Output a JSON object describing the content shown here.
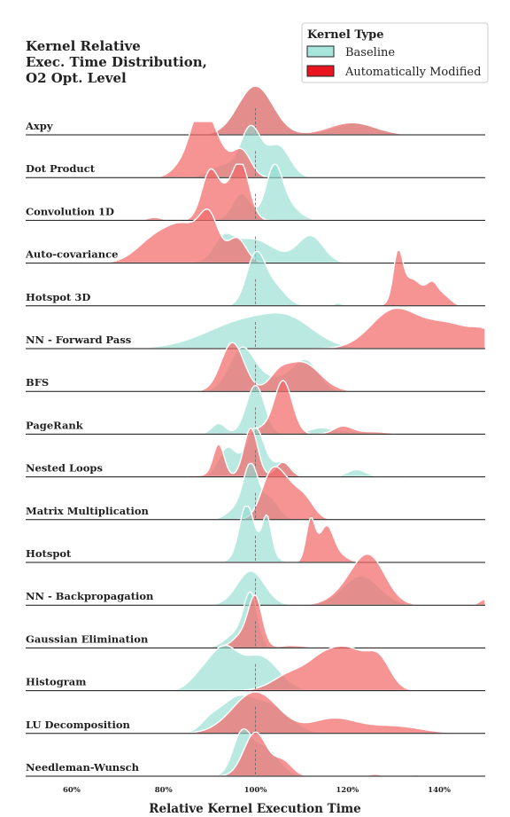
{
  "chart_data": {
    "type": "ridgeline",
    "title": [
      "Kernel Relative",
      "Exec. Time Distribution,",
      "O2 Opt. Level"
    ],
    "xlabel": "Relative Kernel Execution Time",
    "xlim": [
      50,
      150
    ],
    "xticks": [
      60,
      80,
      100,
      120,
      140
    ],
    "xtick_labels": [
      "60%",
      "80%",
      "100%",
      "120%",
      "140%"
    ],
    "reference_line": 100,
    "legend": {
      "title": "Kernel Type",
      "placement": "top-right",
      "entries": [
        {
          "label": "Baseline",
          "color": "#a8e6dc",
          "edge": "#222222"
        },
        {
          "label": "Automatically Modified",
          "color": "#e8141e",
          "edge": "#222222"
        }
      ]
    },
    "colors": {
      "baseline": "#8fdcd0",
      "modified": "#f26b6b",
      "outline": "#ffffff"
    },
    "series_names": [
      "Baseline",
      "Automatically Modified"
    ],
    "kernels": [
      {
        "name": "Axpy",
        "baseline": [
          [
            100,
            4.0,
            1.0
          ],
          [
            122,
            5.0,
            0.25
          ]
        ],
        "modified": [
          [
            100,
            3.8,
            1.0
          ],
          [
            121,
            5.0,
            0.25
          ]
        ]
      },
      {
        "name": "Dot Product",
        "baseline": [
          [
            99,
            2.2,
            1.0
          ],
          [
            105,
            2.5,
            0.65
          ],
          [
            93,
            3.0,
            0.25
          ]
        ],
        "modified": [
          [
            88,
            2.0,
            0.95
          ],
          [
            91,
            2.5,
            0.75
          ],
          [
            97,
            2.0,
            0.55
          ],
          [
            85,
            2.5,
            0.35
          ]
        ]
      },
      {
        "name": "Convolution 1D",
        "baseline": [
          [
            104,
            1.8,
            1.0
          ],
          [
            97,
            2.0,
            0.55
          ],
          [
            107,
            2.5,
            0.3
          ]
        ],
        "modified": [
          [
            90,
            1.8,
            0.9
          ],
          [
            97,
            1.8,
            0.95
          ],
          [
            94,
            2.5,
            0.5
          ],
          [
            78,
            1.5,
            0.06
          ]
        ]
      },
      {
        "name": "Auto-covariance",
        "baseline": [
          [
            112,
            2.8,
            0.55
          ],
          [
            99,
            5.0,
            0.5
          ],
          [
            93,
            2.0,
            0.35
          ]
        ],
        "modified": [
          [
            90,
            2.0,
            0.75
          ],
          [
            85,
            4.0,
            0.7
          ],
          [
            78,
            4.0,
            0.45
          ],
          [
            96,
            2.0,
            0.5
          ]
        ]
      },
      {
        "name": "Hotspot 3D",
        "baseline": [
          [
            100,
            2.0,
            1.0
          ],
          [
            104,
            2.5,
            0.4
          ],
          [
            118,
            0.8,
            0.06
          ]
        ],
        "modified": [
          [
            131,
            1.0,
            0.9
          ],
          [
            134,
            2.5,
            0.55
          ],
          [
            138.5,
            1.2,
            0.35
          ],
          [
            141,
            1.5,
            0.2
          ]
        ]
      },
      {
        "name": "NN - Forward Pass",
        "baseline": [
          [
            99,
            9.0,
            0.6
          ],
          [
            108,
            5.0,
            0.3
          ]
        ],
        "modified": [
          [
            130,
            5.0,
            0.75
          ],
          [
            142,
            6.0,
            0.5
          ],
          [
            150,
            2.5,
            0.2
          ]
        ]
      },
      {
        "name": "BFS",
        "baseline": [
          [
            97,
            2.8,
            0.85
          ],
          [
            111,
            2.8,
            0.6
          ],
          [
            104,
            4.0,
            0.25
          ]
        ],
        "modified": [
          [
            95,
            2.5,
            1.0
          ],
          [
            110,
            4.0,
            0.6
          ],
          [
            105,
            2.0,
            0.2
          ]
        ]
      },
      {
        "name": "PageRank",
        "baseline": [
          [
            100,
            2.0,
            1.0
          ],
          [
            92,
            1.5,
            0.22
          ],
          [
            114,
            2.5,
            0.12
          ],
          [
            120,
            3.0,
            0.06
          ]
        ],
        "modified": [
          [
            106,
            2.0,
            1.1
          ],
          [
            119,
            2.0,
            0.15
          ],
          [
            101,
            1.5,
            0.1
          ],
          [
            125,
            4.0,
            0.05
          ]
        ]
      },
      {
        "name": "Nested Loops",
        "baseline": [
          [
            100,
            2.0,
            1.0
          ],
          [
            94,
            2.0,
            0.6
          ],
          [
            106,
            2.0,
            0.3
          ],
          [
            122,
            2.0,
            0.15
          ],
          [
            135,
            4.0,
            0.03
          ]
        ],
        "modified": [
          [
            99,
            1.5,
            1.0
          ],
          [
            92,
            1.2,
            0.65
          ],
          [
            106,
            1.6,
            0.3
          ],
          [
            88,
            5.0,
            0.03
          ]
        ]
      },
      {
        "name": "Matrix Multiplication",
        "baseline": [
          [
            99,
            1.5,
            0.9
          ],
          [
            103,
            2.0,
            0.45
          ],
          [
            97,
            2.5,
            0.3
          ]
        ],
        "modified": [
          [
            106,
            3.0,
            0.8
          ],
          [
            103,
            2.0,
            0.5
          ],
          [
            111,
            2.0,
            0.3
          ]
        ]
      },
      {
        "name": "Hotspot",
        "baseline": [
          [
            98,
            1.5,
            0.95
          ],
          [
            102.5,
            1.0,
            0.75
          ],
          [
            100,
            3.0,
            0.3
          ]
        ],
        "modified": [
          [
            112,
            1.0,
            0.85
          ],
          [
            115.5,
            1.6,
            0.75
          ],
          [
            119,
            1.5,
            0.1
          ]
        ]
      },
      {
        "name": "NN - Backpropagation",
        "baseline": [
          [
            99,
            3.0,
            0.7
          ],
          [
            123,
            4.0,
            0.6
          ]
        ],
        "modified": [
          [
            125,
            3.5,
            0.85
          ],
          [
            121,
            4.0,
            0.3
          ],
          [
            150,
            1.2,
            0.12
          ]
        ]
      },
      {
        "name": "Gaussian Elimination",
        "baseline": [
          [
            99,
            1.5,
            1.0
          ],
          [
            96,
            2.5,
            0.3
          ],
          [
            107,
            1.0,
            0.08
          ]
        ],
        "modified": [
          [
            100,
            1.5,
            1.0
          ],
          [
            97,
            2.0,
            0.25
          ],
          [
            108,
            3.0,
            0.05
          ]
        ]
      },
      {
        "name": "Histogram",
        "baseline": [
          [
            93,
            3.0,
            0.8
          ],
          [
            101,
            4.0,
            0.7
          ],
          [
            88,
            2.5,
            0.25
          ]
        ],
        "modified": [
          [
            120,
            4.5,
            0.85
          ],
          [
            127,
            2.5,
            0.5
          ],
          [
            108,
            4.0,
            0.35
          ],
          [
            114,
            3.0,
            0.3
          ]
        ]
      },
      {
        "name": "LU Decomposition",
        "baseline": [
          [
            96,
            4.0,
            0.7
          ],
          [
            104,
            4.0,
            0.5
          ],
          [
            90,
            2.0,
            0.15
          ]
        ],
        "modified": [
          [
            100,
            5.0,
            0.85
          ],
          [
            117,
            5.0,
            0.3
          ],
          [
            130,
            6.0,
            0.15
          ]
        ]
      },
      {
        "name": "Needleman-Wunsch",
        "baseline": [
          [
            97,
            2.0,
            0.8
          ],
          [
            102,
            3.0,
            0.6
          ]
        ],
        "modified": [
          [
            100,
            2.5,
            0.9
          ],
          [
            106,
            2.0,
            0.3
          ],
          [
            126,
            1.5,
            0.04
          ],
          [
            135,
            1.0,
            0.03
          ]
        ]
      }
    ]
  }
}
